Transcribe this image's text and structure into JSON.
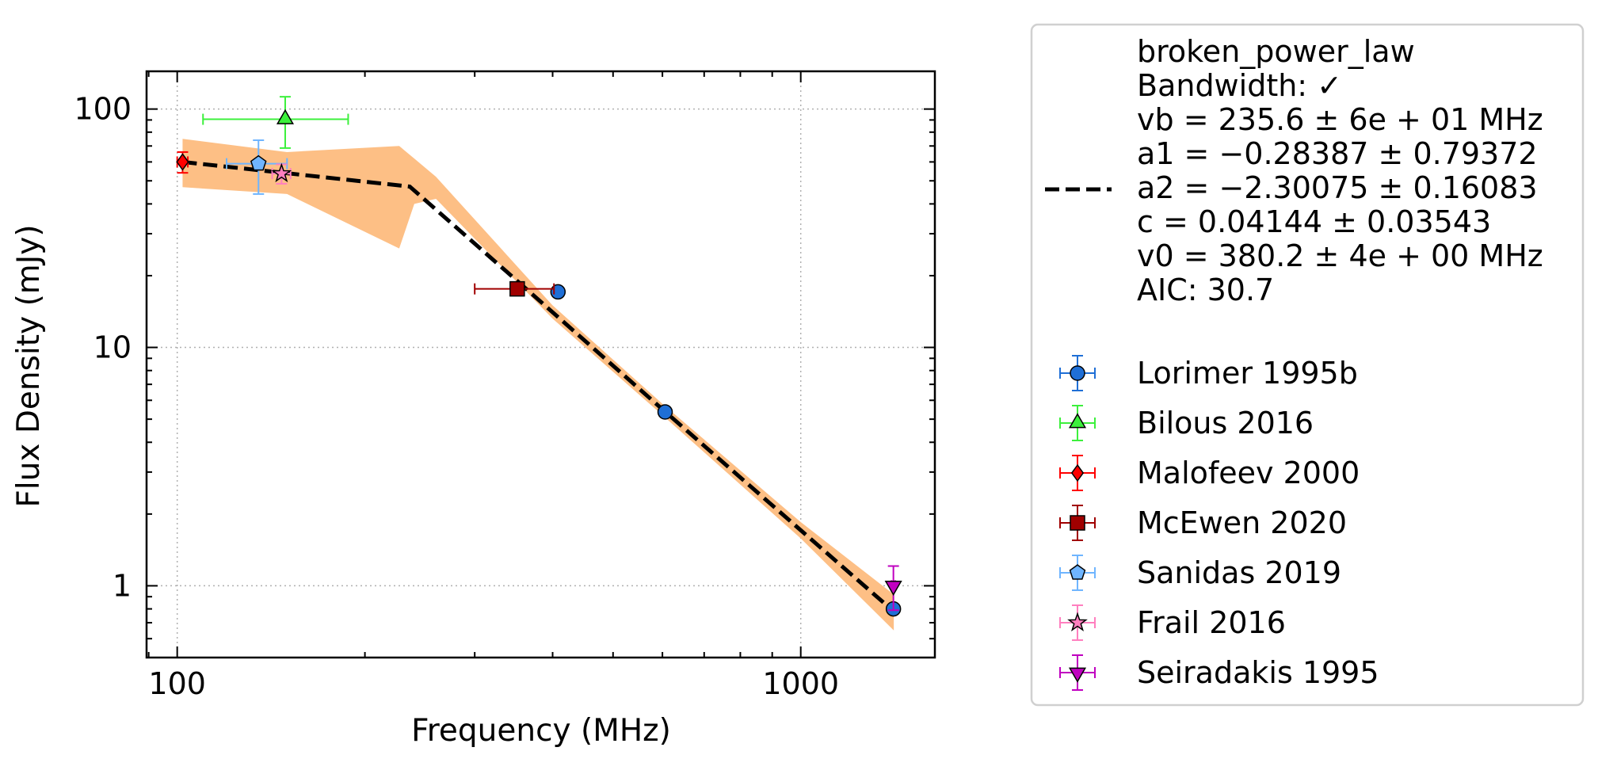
{
  "chart_data": {
    "type": "errorbar",
    "xlabel": "Frequency (MHz)",
    "ylabel": "Flux Density (mJy)",
    "xscale": "log",
    "yscale": "log",
    "xlim": [
      89.3,
      1641
    ],
    "ylim": [
      0.5,
      144
    ],
    "xticks": [
      100,
      1000
    ],
    "yticks": [
      1,
      10,
      100
    ],
    "xminor_ticks": [
      90,
      200,
      300,
      400,
      500,
      600,
      700,
      800,
      900
    ],
    "yminor_ticks": [
      0.5,
      0.6,
      0.7,
      0.8,
      0.9,
      2,
      3,
      4,
      5,
      6,
      7,
      8,
      9,
      20,
      30,
      40,
      50,
      60,
      70,
      80,
      90
    ],
    "grid": true,
    "legend": "outside right",
    "fit": {
      "label_lines": [
        "broken_power_law",
        "Bandwidth: ✓",
        "vb = 235.6 ± 6e + 01 MHz",
        "a1 = −0.28387 ± 0.79372",
        "a2 = −2.30075 ± 0.16083",
        "c = 0.04144 ± 0.03543",
        "v0 = 380.2 ± 4e + 00 MHz",
        "AIC: 30.7"
      ],
      "color": "#000000",
      "band_color": "#fdbf85",
      "x": [
        102,
        150,
        236,
        351,
        600,
        1000,
        1410
      ],
      "values": [
        60,
        53.8,
        47.3,
        19,
        5.5,
        1.71,
        0.78
      ],
      "band_x": [
        102,
        150,
        227,
        240,
        260,
        400,
        600,
        1000,
        1410
      ],
      "band_lower": [
        47,
        44,
        26,
        40,
        42,
        13.2,
        5.2,
        1.58,
        0.65
      ],
      "band_upper": [
        75,
        66,
        70,
        62,
        52,
        15,
        5.8,
        1.85,
        0.92
      ]
    },
    "series": [
      {
        "name": "Lorimer 1995b",
        "marker": "circle",
        "color": "#1f6fd6",
        "x": [
          408,
          606,
          1408
        ],
        "values": [
          17.1,
          5.36,
          0.8
        ]
      },
      {
        "name": "Bilous 2016",
        "marker": "triangle-up",
        "color": "#3cf03c",
        "x": [
          149
        ],
        "values": [
          90.6
        ],
        "xerr": [
          39
        ],
        "yerr": [
          22
        ]
      },
      {
        "name": "Malofeev 2000",
        "marker": "diamond",
        "color": "#ff0000",
        "x": [
          102
        ],
        "values": [
          60
        ],
        "xerr": [
          2
        ],
        "yerr": [
          6
        ]
      },
      {
        "name": "McEwen 2020",
        "marker": "square",
        "color": "#a00000",
        "x": [
          351
        ],
        "values": [
          17.6
        ],
        "xerr": [
          51
        ],
        "yerr": [
          0.8
        ]
      },
      {
        "name": "Sanidas 2019",
        "marker": "pentagon",
        "color": "#6fb5ff",
        "x": [
          135
        ],
        "values": [
          59
        ],
        "xerr": [
          15
        ],
        "yerr": [
          15
        ]
      },
      {
        "name": "Frail 2016",
        "marker": "star",
        "color": "#ff7fbf",
        "x": [
          147
        ],
        "values": [
          53.6
        ],
        "xerr": [
          5
        ],
        "yerr": [
          5
        ]
      },
      {
        "name": "Seiradakis 1995",
        "marker": "triangle-down",
        "color": "#c000c0",
        "x": [
          1408
        ],
        "values": [
          1.0
        ],
        "xerr": [
          10
        ],
        "yerr": [
          0.21
        ]
      }
    ]
  }
}
